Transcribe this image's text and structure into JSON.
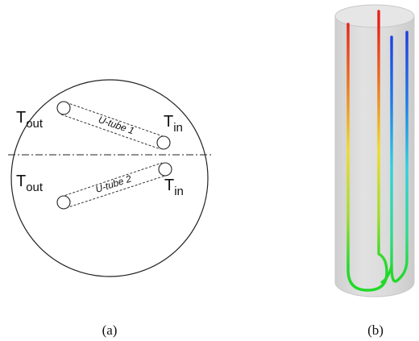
{
  "panel_a": {
    "caption": "(a)",
    "outlets": {
      "upper": {
        "main": "T",
        "sub": "out"
      },
      "lower": {
        "main": "T",
        "sub": "out"
      }
    },
    "inlets": {
      "upper": {
        "main": "T",
        "sub": "in"
      },
      "lower": {
        "main": "T",
        "sub": "in"
      }
    },
    "tubes": {
      "upper_label": "U-tube 1",
      "lower_label": "U-tube 2"
    }
  },
  "panel_b": {
    "caption": "(b)",
    "colors": {
      "cylinder_fill": "#dddddd",
      "cylinder_edge": "#c8c8c8",
      "hot": "#e8231c",
      "warm": "#f0dc28",
      "mid_hot": "#9fdc2c",
      "cool": "#1e3ce0",
      "mid_cool": "#2cd2e0",
      "bottom": "#22d92a"
    }
  }
}
